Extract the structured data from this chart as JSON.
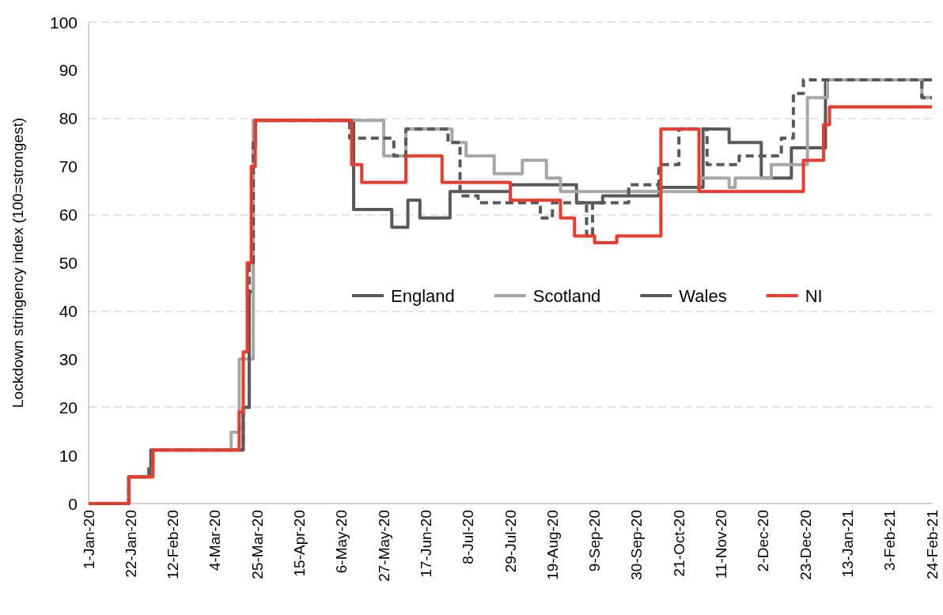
{
  "chart_data": {
    "type": "step",
    "ylabel": "Lockdown stringency index (100=strongest)",
    "xlim": [
      "2020-01-01",
      "2021-02-24"
    ],
    "xticks": [
      {
        "value": "2020-01-01",
        "label": "1-Jan-20"
      },
      {
        "value": "2020-01-22",
        "label": "22-Jan-20"
      },
      {
        "value": "2020-02-12",
        "label": "12-Feb-20"
      },
      {
        "value": "2020-03-04",
        "label": "4-Mar-20"
      },
      {
        "value": "2020-03-25",
        "label": "25-Mar-20"
      },
      {
        "value": "2020-04-15",
        "label": "15-Apr-20"
      },
      {
        "value": "2020-05-06",
        "label": "6-May-20"
      },
      {
        "value": "2020-05-27",
        "label": "27-May-20"
      },
      {
        "value": "2020-06-17",
        "label": "17-Jun-20"
      },
      {
        "value": "2020-07-08",
        "label": "8-Jul-20"
      },
      {
        "value": "2020-07-29",
        "label": "29-Jul-20"
      },
      {
        "value": "2020-08-19",
        "label": "19-Aug-20"
      },
      {
        "value": "2020-09-09",
        "label": "9-Sep-20"
      },
      {
        "value": "2020-09-30",
        "label": "30-Sep-20"
      },
      {
        "value": "2020-10-21",
        "label": "21-Oct-20"
      },
      {
        "value": "2020-11-11",
        "label": "11-Nov-20"
      },
      {
        "value": "2020-12-02",
        "label": "2-Dec-20"
      },
      {
        "value": "2020-12-23",
        "label": "23-Dec-20"
      },
      {
        "value": "2021-01-13",
        "label": "13-Jan-21"
      },
      {
        "value": "2021-02-03",
        "label": "3-Feb-21"
      },
      {
        "value": "2021-02-24",
        "label": "24-Feb-21"
      }
    ],
    "ylim": [
      0,
      100
    ],
    "yticks": [
      0,
      10,
      20,
      30,
      40,
      50,
      60,
      70,
      80,
      90,
      100
    ],
    "grid": "y",
    "legend": "center",
    "marker": "none",
    "series": [
      {
        "name": "England",
        "color": "#595959",
        "line_style": "solid",
        "x": [
          "2020-01-01",
          "2020-01-21",
          "2020-02-01",
          "2020-03-18",
          "2020-03-21",
          "2020-03-23",
          "2020-03-24",
          "2020-05-12",
          "2020-05-31",
          "2020-06-08",
          "2020-06-14",
          "2020-06-29",
          "2020-07-29",
          "2020-08-31",
          "2020-09-13",
          "2020-10-11",
          "2020-11-02",
          "2020-11-15",
          "2020-12-01",
          "2020-12-16",
          "2021-01-02",
          "2021-02-24"
        ],
        "values": [
          0,
          5.56,
          11.11,
          20,
          44,
          74,
          79.6,
          61.1,
          57.4,
          63,
          59.3,
          64.8,
          66.2,
          62.5,
          63.9,
          65.7,
          77.8,
          75,
          67.6,
          73.9,
          88,
          88
        ]
      },
      {
        "name": "Scotland",
        "color": "#a6a6a6",
        "line_style": "solid",
        "x": [
          "2020-01-01",
          "2020-01-21",
          "2020-02-02",
          "2020-03-12",
          "2020-03-16",
          "2020-03-23",
          "2020-05-27",
          "2020-06-07",
          "2020-06-30",
          "2020-07-07",
          "2020-07-21",
          "2020-08-04",
          "2020-08-16",
          "2020-08-23",
          "2020-10-31",
          "2020-11-15",
          "2020-11-18",
          "2020-12-06",
          "2020-12-24",
          "2021-01-03",
          "2021-02-19",
          "2021-02-24"
        ],
        "values": [
          0,
          5.56,
          11.11,
          14.8,
          30,
          79.6,
          72.2,
          77.8,
          75,
          72.2,
          68.5,
          71.3,
          67.6,
          64.8,
          67.6,
          65.7,
          67.6,
          70.4,
          84.3,
          88,
          84.3,
          84.3
        ]
      },
      {
        "name": "Wales",
        "color": "#595959",
        "line_style": "dashed",
        "x": [
          "2020-01-01",
          "2020-01-21",
          "2020-01-31",
          "2020-02-02",
          "2020-03-18",
          "2020-03-21",
          "2020-03-23",
          "2020-03-24",
          "2020-05-10",
          "2020-06-01",
          "2020-06-07",
          "2020-06-28",
          "2020-07-04",
          "2020-07-13",
          "2020-08-13",
          "2020-08-19",
          "2020-09-05",
          "2020-09-08",
          "2020-09-26",
          "2020-10-11",
          "2020-10-21",
          "2020-11-04",
          "2020-11-20",
          "2020-12-11",
          "2020-12-17",
          "2020-12-22",
          "2021-02-19",
          "2021-02-24"
        ],
        "values": [
          0,
          5.56,
          8.3,
          11.11,
          20,
          50,
          75,
          79.6,
          75.9,
          72.2,
          77.8,
          75,
          63.9,
          62.5,
          59.3,
          62.5,
          55.6,
          62.5,
          66.2,
          70.4,
          77.8,
          70.4,
          72.2,
          75.9,
          85.2,
          88,
          84.3,
          84.3
        ]
      },
      {
        "name": "NI",
        "color": "#ee3a2c",
        "line_style": "solid",
        "x": [
          "2020-01-01",
          "2020-01-21",
          "2020-02-02",
          "2020-03-16",
          "2020-03-18",
          "2020-03-20",
          "2020-03-22",
          "2020-03-24",
          "2020-05-11",
          "2020-05-16",
          "2020-06-07",
          "2020-06-25",
          "2020-07-29",
          "2020-08-23",
          "2020-08-30",
          "2020-09-09",
          "2020-09-20",
          "2020-10-12",
          "2020-10-31",
          "2020-12-22",
          "2021-01-01",
          "2021-01-04",
          "2021-02-24"
        ],
        "values": [
          0,
          5.56,
          11.11,
          19,
          31.5,
          50,
          70,
          79.6,
          70.4,
          66.7,
          72.2,
          66.7,
          63,
          59.3,
          55.6,
          54.2,
          55.6,
          77.8,
          64.8,
          71.3,
          78.7,
          82.4,
          82.4
        ]
      }
    ]
  }
}
